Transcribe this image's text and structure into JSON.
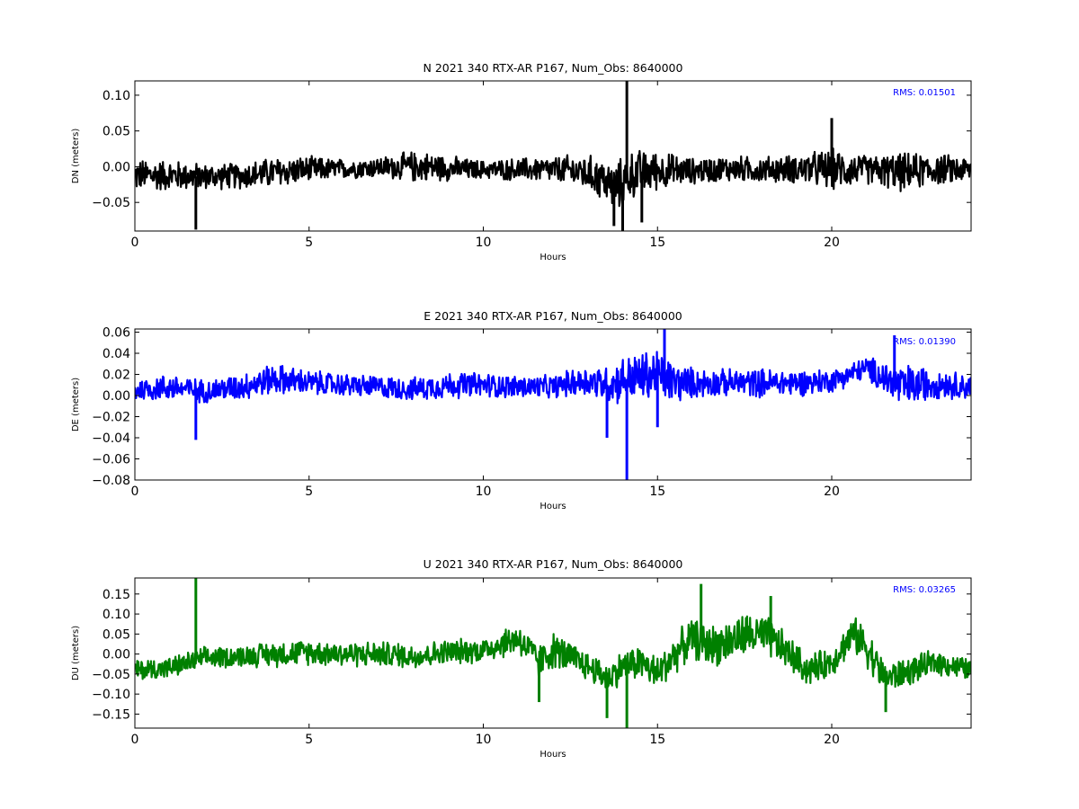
{
  "chart_data": [
    {
      "type": "line",
      "title": "N 2021 340 RTX-AR  P167, Num_Obs: 8640000",
      "xlabel": "Hours",
      "ylabel": "DN (meters)",
      "xlim": [
        0,
        24
      ],
      "ylim": [
        -0.09,
        0.12
      ],
      "xticks": [
        0,
        5,
        10,
        15,
        20
      ],
      "yticks": [
        -0.05,
        0.0,
        0.05,
        0.1
      ],
      "ytick_labels": [
        "−0.05",
        "0.00",
        "0.05",
        "0.10"
      ],
      "xtick_labels": [
        "0",
        "5",
        "10",
        "15",
        "20"
      ],
      "grid": false,
      "annotation": "RMS:  0.01501",
      "series": [
        {
          "color": "#000000",
          "center": [
            [
              0,
              -0.012
            ],
            [
              1,
              -0.012
            ],
            [
              2,
              -0.014
            ],
            [
              3,
              -0.013
            ],
            [
              4,
              -0.008
            ],
            [
              5,
              -0.004
            ],
            [
              6,
              -0.003
            ],
            [
              7,
              -0.001
            ],
            [
              7.8,
              0.0
            ],
            [
              8.5,
              0.0
            ],
            [
              9.5,
              -0.004
            ],
            [
              10.5,
              -0.004
            ],
            [
              11.5,
              -0.004
            ],
            [
              12.5,
              -0.005
            ],
            [
              13.2,
              -0.012
            ],
            [
              13.8,
              -0.03
            ],
            [
              14.3,
              -0.01
            ],
            [
              15,
              -0.005
            ],
            [
              16,
              -0.006
            ],
            [
              17,
              -0.003
            ],
            [
              18,
              -0.004
            ],
            [
              19,
              -0.003
            ],
            [
              20,
              -0.004
            ],
            [
              21,
              -0.004
            ],
            [
              22,
              -0.008
            ],
            [
              23,
              -0.004
            ],
            [
              24,
              -0.004
            ]
          ],
          "amplitude": [
            [
              0,
              0.025
            ],
            [
              1,
              0.024
            ],
            [
              2,
              0.02
            ],
            [
              3,
              0.02
            ],
            [
              4,
              0.024
            ],
            [
              5,
              0.02
            ],
            [
              6,
              0.015
            ],
            [
              7,
              0.016
            ],
            [
              8,
              0.024
            ],
            [
              9,
              0.02
            ],
            [
              10,
              0.014
            ],
            [
              11,
              0.018
            ],
            [
              12,
              0.02
            ],
            [
              13,
              0.028
            ],
            [
              14,
              0.04
            ],
            [
              15,
              0.03
            ],
            [
              16,
              0.02
            ],
            [
              17,
              0.02
            ],
            [
              18,
              0.02
            ],
            [
              19,
              0.022
            ],
            [
              20,
              0.032
            ],
            [
              21,
              0.022
            ],
            [
              22,
              0.03
            ],
            [
              23,
              0.024
            ],
            [
              24,
              0.02
            ]
          ],
          "spikes": [
            [
              1.75,
              -0.088
            ],
            [
              14.12,
              0.12
            ],
            [
              14.0,
              -0.09
            ],
            [
              14.55,
              -0.078
            ],
            [
              20.0,
              0.068
            ],
            [
              13.75,
              -0.083
            ]
          ]
        }
      ]
    },
    {
      "type": "line",
      "title": "E 2021 340 RTX-AR  P167, Num_Obs: 8640000",
      "xlabel": "Hours",
      "ylabel": "DE (meters)",
      "xlim": [
        0,
        24
      ],
      "ylim": [
        -0.08,
        0.063
      ],
      "xticks": [
        0,
        5,
        10,
        15,
        20
      ],
      "yticks": [
        -0.08,
        -0.06,
        -0.04,
        -0.02,
        0.0,
        0.02,
        0.04,
        0.06
      ],
      "ytick_labels": [
        "−0.08",
        "−0.06",
        "−0.04",
        "−0.02",
        "0.00",
        "0.02",
        "0.04",
        "0.06"
      ],
      "xtick_labels": [
        "0",
        "5",
        "10",
        "15",
        "20"
      ],
      "grid": false,
      "annotation": "RMS:  0.01390",
      "series": [
        {
          "color": "#0000ff",
          "center": [
            [
              0,
              0.005
            ],
            [
              1,
              0.008
            ],
            [
              2,
              0.004
            ],
            [
              3,
              0.008
            ],
            [
              4,
              0.016
            ],
            [
              5,
              0.012
            ],
            [
              6,
              0.01
            ],
            [
              7,
              0.008
            ],
            [
              8,
              0.006
            ],
            [
              9,
              0.01
            ],
            [
              10,
              0.01
            ],
            [
              11,
              0.008
            ],
            [
              12,
              0.008
            ],
            [
              12.5,
              0.012
            ],
            [
              13,
              0.014
            ],
            [
              13.6,
              0.01
            ],
            [
              14,
              0.015
            ],
            [
              15,
              0.02
            ],
            [
              15.5,
              0.012
            ],
            [
              16,
              0.012
            ],
            [
              17,
              0.012
            ],
            [
              18,
              0.012
            ],
            [
              19,
              0.012
            ],
            [
              20,
              0.014
            ],
            [
              21,
              0.026
            ],
            [
              22,
              0.008
            ],
            [
              23,
              0.012
            ],
            [
              24,
              0.008
            ]
          ],
          "amplitude": [
            [
              0,
              0.012
            ],
            [
              1,
              0.014
            ],
            [
              2,
              0.012
            ],
            [
              3,
              0.014
            ],
            [
              4,
              0.016
            ],
            [
              5,
              0.013
            ],
            [
              6,
              0.012
            ],
            [
              7,
              0.012
            ],
            [
              8,
              0.012
            ],
            [
              9,
              0.014
            ],
            [
              10,
              0.013
            ],
            [
              11,
              0.012
            ],
            [
              12,
              0.012
            ],
            [
              13,
              0.016
            ],
            [
              14,
              0.024
            ],
            [
              15,
              0.028
            ],
            [
              16,
              0.016
            ],
            [
              17,
              0.014
            ],
            [
              18,
              0.015
            ],
            [
              19,
              0.014
            ],
            [
              20,
              0.012
            ],
            [
              21,
              0.012
            ],
            [
              22,
              0.024
            ],
            [
              23,
              0.016
            ],
            [
              24,
              0.013
            ]
          ],
          "spikes": [
            [
              1.75,
              -0.042
            ],
            [
              13.55,
              -0.04
            ],
            [
              14.12,
              -0.08
            ],
            [
              15.2,
              0.063
            ],
            [
              15.0,
              -0.03
            ],
            [
              21.8,
              0.057
            ]
          ]
        }
      ]
    },
    {
      "type": "line",
      "title": "U 2021 340 RTX-AR  P167, Num_Obs: 8640000",
      "xlabel": "Hours",
      "ylabel": "DU (meters)",
      "xlim": [
        0,
        24
      ],
      "ylim": [
        -0.185,
        0.19
      ],
      "xticks": [
        0,
        5,
        10,
        15,
        20
      ],
      "yticks": [
        -0.15,
        -0.1,
        -0.05,
        0.0,
        0.05,
        0.1,
        0.15
      ],
      "ytick_labels": [
        "−0.15",
        "−0.10",
        "−0.05",
        "0.00",
        "0.05",
        "0.10",
        "0.15"
      ],
      "xtick_labels": [
        "0",
        "5",
        "10",
        "15",
        "20"
      ],
      "grid": false,
      "annotation": "RMS:  0.03265",
      "series": [
        {
          "color": "#008000",
          "center": [
            [
              0,
              -0.04
            ],
            [
              1,
              -0.035
            ],
            [
              2,
              -0.01
            ],
            [
              3,
              -0.005
            ],
            [
              4,
              0.0
            ],
            [
              5,
              0.005
            ],
            [
              6,
              0.0
            ],
            [
              7,
              0.0
            ],
            [
              8,
              -0.005
            ],
            [
              9,
              0.005
            ],
            [
              10,
              0.01
            ],
            [
              10.5,
              0.025
            ],
            [
              11,
              0.04
            ],
            [
              11.6,
              -0.02
            ],
            [
              12,
              0.01
            ],
            [
              12.5,
              -0.01
            ],
            [
              13,
              -0.03
            ],
            [
              13.6,
              -0.06
            ],
            [
              14,
              -0.03
            ],
            [
              14.5,
              -0.02
            ],
            [
              15,
              -0.05
            ],
            [
              15.5,
              0.0
            ],
            [
              16,
              0.04
            ],
            [
              16.5,
              0.02
            ],
            [
              17,
              0.03
            ],
            [
              17.6,
              0.05
            ],
            [
              18.2,
              0.04
            ],
            [
              18.8,
              0.0
            ],
            [
              19.3,
              -0.04
            ],
            [
              20,
              -0.02
            ],
            [
              20.6,
              0.05
            ],
            [
              21,
              0.02
            ],
            [
              21.5,
              -0.06
            ],
            [
              22,
              -0.05
            ],
            [
              23,
              -0.02
            ],
            [
              24,
              -0.04
            ]
          ],
          "amplitude": [
            [
              0,
              0.03
            ],
            [
              1,
              0.03
            ],
            [
              2,
              0.03
            ],
            [
              3,
              0.03
            ],
            [
              4,
              0.035
            ],
            [
              5,
              0.035
            ],
            [
              6,
              0.035
            ],
            [
              7,
              0.035
            ],
            [
              8,
              0.035
            ],
            [
              9,
              0.035
            ],
            [
              10,
              0.035
            ],
            [
              11,
              0.045
            ],
            [
              12,
              0.05
            ],
            [
              13,
              0.04
            ],
            [
              14,
              0.045
            ],
            [
              15,
              0.05
            ],
            [
              16,
              0.055
            ],
            [
              17,
              0.06
            ],
            [
              18,
              0.06
            ],
            [
              19,
              0.045
            ],
            [
              20,
              0.04
            ],
            [
              21,
              0.055
            ],
            [
              22,
              0.04
            ],
            [
              23,
              0.035
            ],
            [
              24,
              0.03
            ]
          ],
          "spikes": [
            [
              1.75,
              0.19
            ],
            [
              13.55,
              -0.16
            ],
            [
              14.12,
              -0.185
            ],
            [
              16.25,
              0.175
            ],
            [
              18.25,
              0.145
            ],
            [
              21.55,
              -0.145
            ],
            [
              11.6,
              -0.12
            ]
          ]
        }
      ]
    }
  ]
}
